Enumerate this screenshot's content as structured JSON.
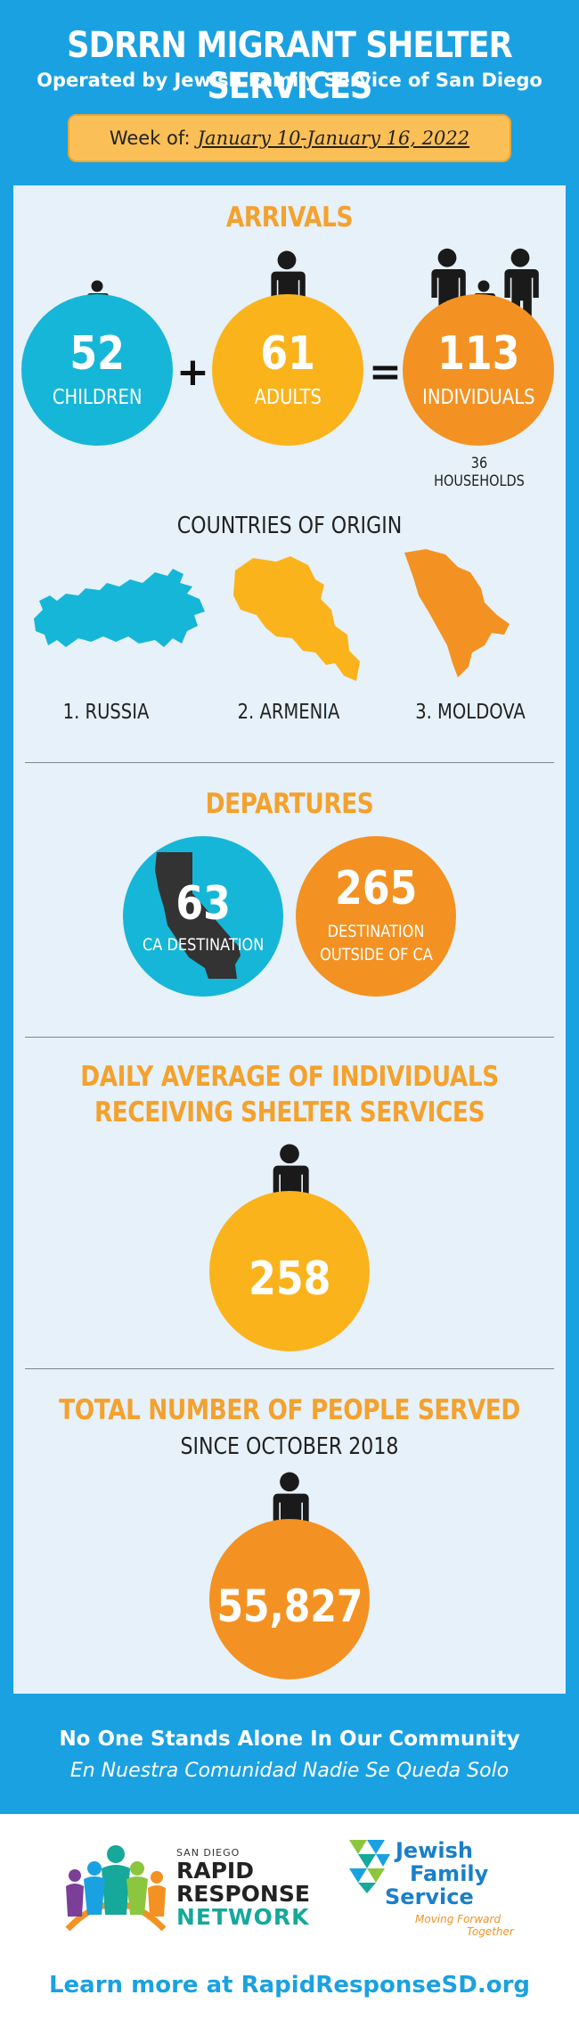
{
  "header": {
    "title": "SDRRN MIGRANT SHELTER SERVICES",
    "subtitle": "Operated by Jewish Family Service of San Diego",
    "week_label": "Week of:",
    "week_dates": "January 10-January 16, 2022"
  },
  "arrivals": {
    "title": "ARRIVALS",
    "children": {
      "value": "52",
      "label": "CHILDREN"
    },
    "plus": "+",
    "adults": {
      "value": "61",
      "label": "ADULTS"
    },
    "equals": "=",
    "individuals": {
      "value": "113",
      "label": "INDIVIDUALS"
    },
    "households": "36 HOUSEHOLDS"
  },
  "countries": {
    "title": "COUNTRIES OF ORIGIN",
    "items": [
      "1. RUSSIA",
      "2. ARMENIA",
      "3. MOLDOVA"
    ]
  },
  "departures": {
    "title": "DEPARTURES",
    "ca": {
      "value": "63",
      "label": "CA DESTINATION"
    },
    "outside": {
      "value": "265",
      "label_line1": "DESTINATION",
      "label_line2": "OUTSIDE OF CA"
    }
  },
  "daily": {
    "title_line1": "DAILY AVERAGE OF INDIVIDUALS",
    "title_line2": "RECEIVING SHELTER SERVICES",
    "value": "258"
  },
  "total": {
    "title": "TOTAL NUMBER OF PEOPLE SERVED",
    "subtitle": "SINCE OCTOBER 2018",
    "value": "55,827"
  },
  "tagline": {
    "en": "No One Stands Alone In Our Community",
    "es": "En Nuestra Comunidad Nadie Se Queda Solo"
  },
  "logos": {
    "rrn_small": "SAN DIEGO",
    "rrn_line1": "RAPID",
    "rrn_line2": "RESPONSE",
    "rrn_line3": "NETWORK",
    "jfs_line1": "Jewish",
    "jfs_line2": "Family",
    "jfs_line3": "Service",
    "jfs_tag1": "Moving Forward",
    "jfs_tag2": "Together"
  },
  "footer": {
    "learn_more": "Learn more at RapidResponseSD.org"
  },
  "colors": {
    "blue": "#1aa1e2",
    "cyan": "#16b6d8",
    "gold": "#fbb31c",
    "orange": "#f39222",
    "title_orange": "#f4a12d"
  }
}
